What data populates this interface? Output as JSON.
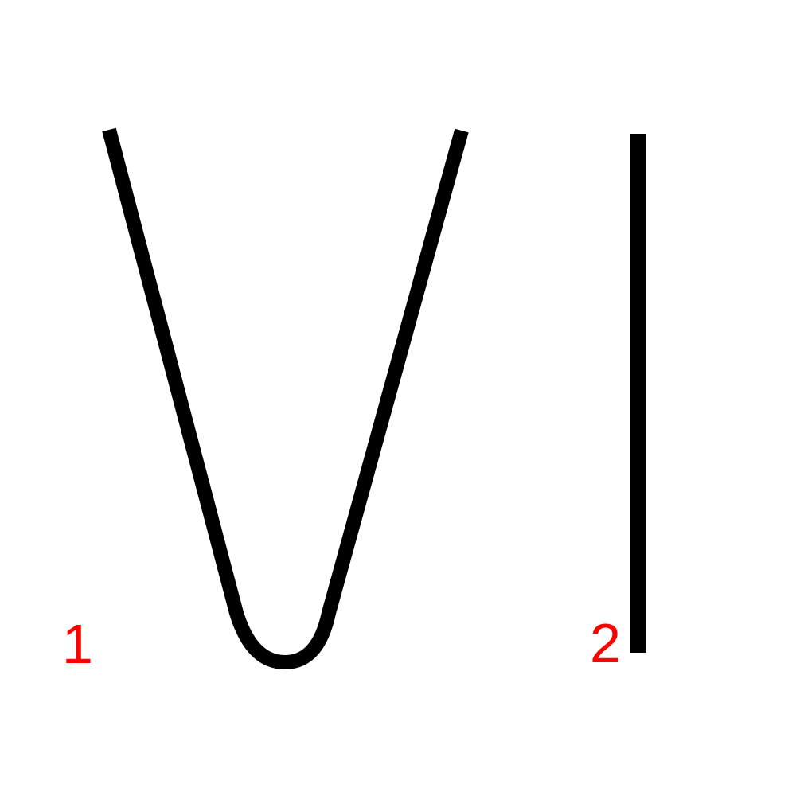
{
  "figures": [
    {
      "id": "u-curve",
      "label": "1",
      "shape": "u-curve"
    },
    {
      "id": "vertical-line",
      "label": "2",
      "shape": "vertical-line"
    }
  ],
  "colors": {
    "background": "#ffffff",
    "stroke": "#000000",
    "label": "#ff0000"
  }
}
